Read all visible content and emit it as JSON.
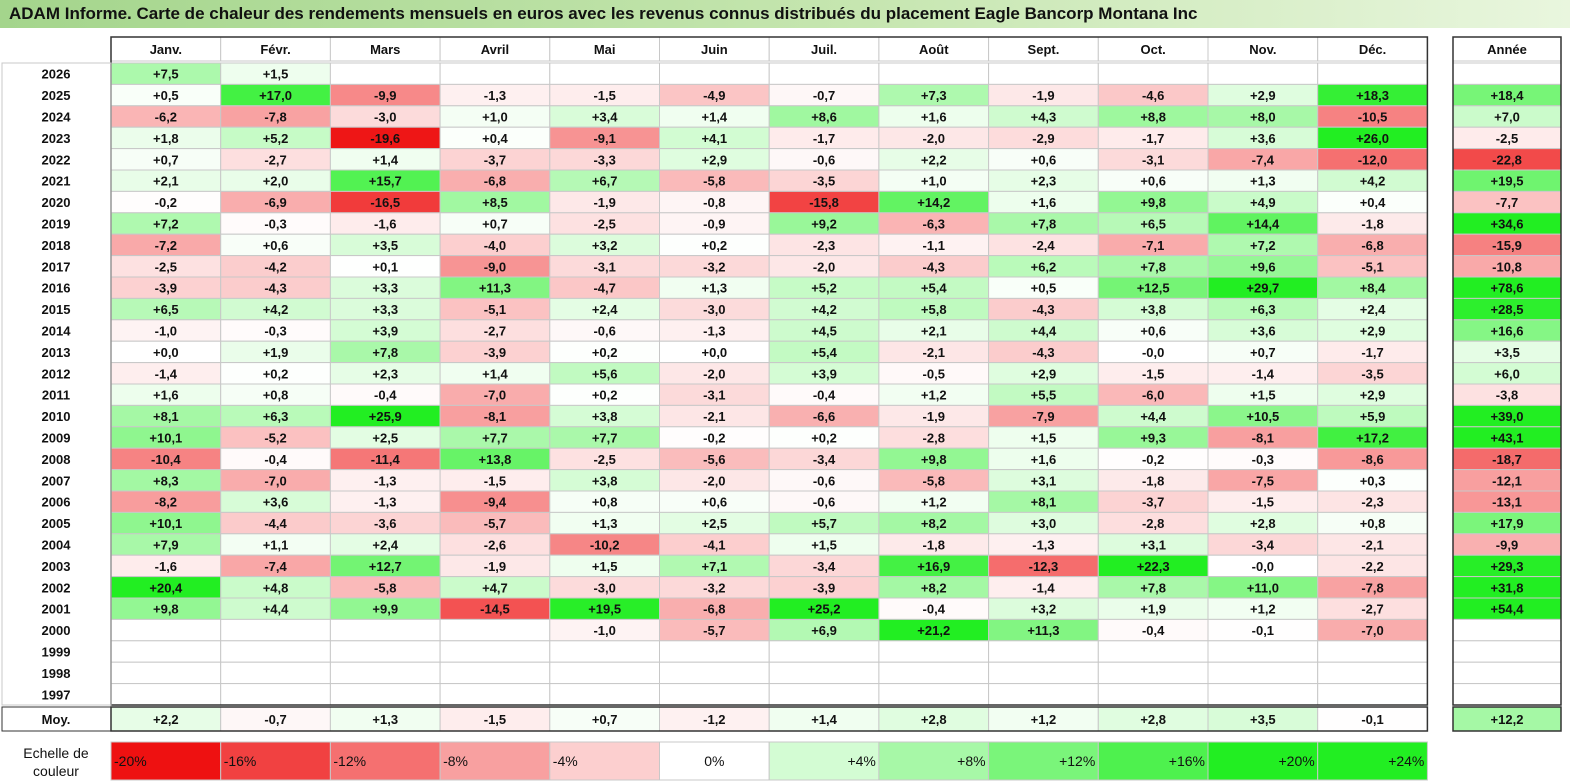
{
  "page": {
    "title": "ADAM Informe. Carte de chaleur des rendements mensuels en euros avec les revenus connus distribués du placement Eagle Bancorp Montana Inc"
  },
  "colors": {
    "positive": "#22ee22",
    "negative": "#ee1111",
    "neutral": "#ffffff",
    "title_bar": "#a4d58c"
  },
  "chart_data": {
    "type": "heatmap",
    "title": "ADAM Informe. Carte de chaleur des rendements mensuels en euros avec les revenus connus distribués du placement Eagle Bancorp Montana Inc",
    "months": [
      "Janv.",
      "Févr.",
      "Mars",
      "Avril",
      "Mai",
      "Juin",
      "Juil.",
      "Août",
      "Sept.",
      "Oct.",
      "Nov.",
      "Déc."
    ],
    "year_header": "Année",
    "rows": [
      {
        "year": "2026",
        "values": [
          7.5,
          1.5,
          null,
          null,
          null,
          null,
          null,
          null,
          null,
          null,
          null,
          null
        ],
        "annual": null
      },
      {
        "year": "2025",
        "values": [
          0.5,
          17.0,
          -9.9,
          -1.3,
          -1.5,
          -4.9,
          -0.7,
          7.3,
          -1.9,
          -4.6,
          2.9,
          18.3
        ],
        "annual": 18.4
      },
      {
        "year": "2024",
        "values": [
          -6.2,
          -7.8,
          -3.0,
          1.0,
          3.4,
          1.4,
          8.6,
          1.6,
          4.3,
          8.8,
          8.0,
          -10.5
        ],
        "annual": 7.0
      },
      {
        "year": "2023",
        "values": [
          1.8,
          5.2,
          -19.6,
          0.4,
          -9.1,
          4.1,
          -1.7,
          -2.0,
          -2.9,
          -1.7,
          3.6,
          26.0
        ],
        "annual": -2.5
      },
      {
        "year": "2022",
        "values": [
          0.7,
          -2.7,
          1.4,
          -3.7,
          -3.3,
          2.9,
          -0.6,
          2.2,
          0.6,
          -3.1,
          -7.4,
          -12.0
        ],
        "annual": -22.8
      },
      {
        "year": "2021",
        "values": [
          2.1,
          2.0,
          15.7,
          -6.8,
          6.7,
          -5.8,
          -3.5,
          1.0,
          2.3,
          0.6,
          1.3,
          4.2
        ],
        "annual": 19.5
      },
      {
        "year": "2020",
        "values": [
          -0.2,
          -6.9,
          -16.5,
          8.5,
          -1.9,
          -0.8,
          -15.8,
          14.2,
          1.6,
          9.8,
          4.9,
          0.4
        ],
        "annual": -7.7
      },
      {
        "year": "2019",
        "values": [
          7.2,
          -0.3,
          -1.6,
          0.7,
          -2.5,
          -0.9,
          9.2,
          -6.3,
          7.8,
          6.5,
          14.4,
          -1.8
        ],
        "annual": 34.6
      },
      {
        "year": "2018",
        "values": [
          -7.2,
          0.6,
          3.5,
          -4.0,
          3.2,
          0.2,
          -2.3,
          -1.1,
          -2.4,
          -7.1,
          7.2,
          -6.8
        ],
        "annual": -15.9
      },
      {
        "year": "2017",
        "values": [
          -2.5,
          -4.2,
          0.1,
          -9.0,
          -3.1,
          -3.2,
          -2.0,
          -4.3,
          6.2,
          7.8,
          9.6,
          -5.1
        ],
        "annual": -10.8
      },
      {
        "year": "2016",
        "values": [
          -3.9,
          -4.3,
          3.3,
          11.3,
          -4.7,
          1.3,
          5.2,
          5.4,
          0.5,
          12.5,
          29.7,
          8.4
        ],
        "annual": 78.6
      },
      {
        "year": "2015",
        "values": [
          6.5,
          4.2,
          3.3,
          -5.1,
          2.4,
          -3.0,
          4.2,
          5.8,
          -4.3,
          3.8,
          6.3,
          2.4
        ],
        "annual": 28.5
      },
      {
        "year": "2014",
        "values": [
          -1.0,
          -0.3,
          3.9,
          -2.7,
          -0.6,
          -1.3,
          4.5,
          2.1,
          4.4,
          0.6,
          3.6,
          2.9
        ],
        "annual": 16.6
      },
      {
        "year": "2013",
        "values": [
          0.0,
          1.9,
          7.8,
          -3.9,
          0.2,
          0.0,
          5.4,
          -2.1,
          -4.3,
          -0.0,
          0.7,
          -1.7
        ],
        "annual": 3.5
      },
      {
        "year": "2012",
        "values": [
          -1.4,
          0.2,
          2.3,
          1.4,
          5.6,
          -2.0,
          3.9,
          -0.5,
          2.9,
          -1.5,
          -1.4,
          -3.5
        ],
        "annual": 6.0
      },
      {
        "year": "2011",
        "values": [
          1.6,
          0.8,
          -0.4,
          -7.0,
          0.2,
          -3.1,
          -0.4,
          1.2,
          5.5,
          -6.0,
          1.5,
          2.9
        ],
        "annual": -3.8
      },
      {
        "year": "2010",
        "values": [
          8.1,
          6.3,
          25.9,
          -8.1,
          3.8,
          -2.1,
          -6.6,
          -1.9,
          -7.9,
          4.4,
          10.5,
          5.9
        ],
        "annual": 39.0
      },
      {
        "year": "2009",
        "values": [
          10.1,
          -5.2,
          2.5,
          7.7,
          7.7,
          -0.2,
          0.2,
          -2.8,
          1.5,
          9.3,
          -8.1,
          17.2
        ],
        "annual": 43.1
      },
      {
        "year": "2008",
        "values": [
          -10.4,
          -0.4,
          -11.4,
          13.8,
          -2.5,
          -5.6,
          -3.4,
          9.8,
          1.6,
          -0.2,
          -0.3,
          -8.6
        ],
        "annual": -18.7
      },
      {
        "year": "2007",
        "values": [
          8.3,
          -7.0,
          -1.3,
          -1.5,
          3.8,
          -2.0,
          -0.6,
          -5.8,
          3.1,
          -1.8,
          -7.5,
          0.3
        ],
        "annual": -12.1
      },
      {
        "year": "2006",
        "values": [
          -8.2,
          3.6,
          -1.3,
          -9.4,
          0.8,
          0.6,
          -0.6,
          1.2,
          8.1,
          -3.7,
          -1.5,
          -2.3
        ],
        "annual": -13.1
      },
      {
        "year": "2005",
        "values": [
          10.1,
          -4.4,
          -3.6,
          -5.7,
          1.3,
          2.5,
          5.7,
          8.2,
          3.0,
          -2.8,
          2.8,
          0.8
        ],
        "annual": 17.9
      },
      {
        "year": "2004",
        "values": [
          7.9,
          1.1,
          2.4,
          -2.6,
          -10.2,
          -4.1,
          1.5,
          -1.8,
          -1.3,
          3.1,
          -3.4,
          -2.1
        ],
        "annual": -9.9
      },
      {
        "year": "2003",
        "values": [
          -1.6,
          -7.4,
          12.7,
          -1.9,
          1.5,
          7.1,
          -3.4,
          16.9,
          -12.3,
          22.3,
          -0.0,
          -2.2
        ],
        "annual": 29.3
      },
      {
        "year": "2002",
        "values": [
          20.4,
          4.8,
          -5.8,
          4.7,
          -3.0,
          -3.2,
          -3.9,
          8.2,
          -1.4,
          7.8,
          11.0,
          -7.8
        ],
        "annual": 31.8
      },
      {
        "year": "2001",
        "values": [
          9.8,
          4.4,
          9.9,
          -14.5,
          19.5,
          -6.8,
          25.2,
          -0.4,
          3.2,
          1.9,
          1.2,
          -2.7
        ],
        "annual": 54.4
      },
      {
        "year": "2000",
        "values": [
          null,
          null,
          null,
          null,
          -1.0,
          -5.7,
          6.9,
          21.2,
          11.3,
          -0.4,
          -0.1,
          -7.0
        ],
        "annual": null
      },
      {
        "year": "1999",
        "values": [
          null,
          null,
          null,
          null,
          null,
          null,
          null,
          null,
          null,
          null,
          null,
          null
        ],
        "annual": null
      },
      {
        "year": "1998",
        "values": [
          null,
          null,
          null,
          null,
          null,
          null,
          null,
          null,
          null,
          null,
          null,
          null
        ],
        "annual": null
      },
      {
        "year": "1997",
        "values": [
          null,
          null,
          null,
          null,
          null,
          null,
          null,
          null,
          null,
          null,
          null,
          null
        ],
        "annual": null
      }
    ],
    "average": {
      "label": "Moy.",
      "values": [
        2.2,
        -0.7,
        1.3,
        -1.5,
        0.7,
        -1.2,
        1.4,
        2.8,
        1.2,
        2.8,
        3.5,
        -0.1
      ],
      "annual": 12.2
    },
    "scale": {
      "label_line1": "Echelle de",
      "label_line2": "couleur",
      "labels": [
        "-20%",
        "-16%",
        "-12%",
        "-8%",
        "-4%",
        "0%",
        "+4%",
        "+8%",
        "+12%",
        "+16%",
        "+20%",
        "+24%"
      ],
      "values": [
        -20,
        -16,
        -12,
        -8,
        -4,
        0,
        4,
        8,
        12,
        16,
        20,
        24
      ]
    }
  }
}
